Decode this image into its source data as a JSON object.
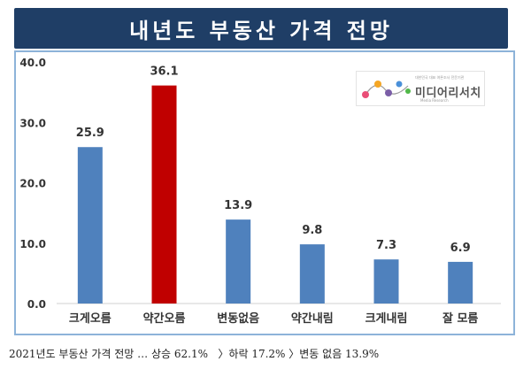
{
  "header": {
    "title": "내년도 부동산 가격 전망"
  },
  "chart_data": {
    "type": "bar",
    "categories": [
      "크게오름",
      "약간오름",
      "변동없음",
      "약간내림",
      "크게내림",
      "잘 모름"
    ],
    "values": [
      25.9,
      36.1,
      13.9,
      9.8,
      7.3,
      6.9
    ],
    "value_labels": [
      "25.9",
      "36.1",
      "13.9",
      "9.8",
      "7.3",
      "6.9"
    ],
    "colors": [
      "#4f81bd",
      "#c00000",
      "#4f81bd",
      "#4f81bd",
      "#4f81bd",
      "#4f81bd"
    ],
    "yticks": [
      "0.0",
      "10.0",
      "20.0",
      "30.0",
      "40.0"
    ],
    "ylim": [
      0,
      40
    ],
    "grid": false,
    "title": "내년도 부동산 가격 전망",
    "xlabel": "",
    "ylabel": ""
  },
  "logo": {
    "name": "미디어리서치",
    "tagline": "Media Research",
    "sub": "대한민국 대표 여론조사 전문기관"
  },
  "caption": "2021년도 부동산 가격 전망 … 상승 62.1%   〉하락 17.2% 〉변동 없음 13.9%"
}
